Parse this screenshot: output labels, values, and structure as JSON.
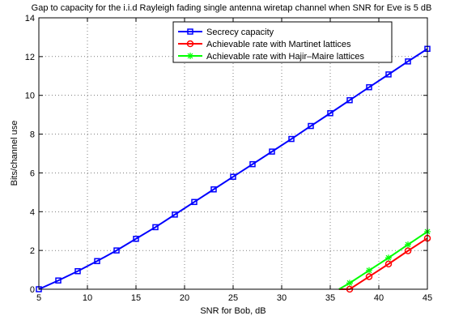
{
  "chart_data": {
    "type": "line",
    "title": "Gap to capacity for the i.i.d Rayleigh fading single antenna wiretap channel when SNR for Eve is 5 dB",
    "xlabel": "SNR for Bob, dB",
    "ylabel": "Bits/channel use",
    "xlim": [
      5,
      45
    ],
    "ylim": [
      0,
      14
    ],
    "xticks": [
      5,
      10,
      15,
      20,
      25,
      30,
      35,
      40,
      45
    ],
    "yticks": [
      0,
      2,
      4,
      6,
      8,
      10,
      12,
      14
    ],
    "grid": true,
    "legend_position": "top-center",
    "series": [
      {
        "name": "Secrecy capacity",
        "color": "#0000ff",
        "marker": "square",
        "x": [
          5,
          7,
          9,
          11,
          13,
          15,
          17,
          19,
          21,
          23,
          25,
          27,
          29,
          31,
          33,
          35,
          37,
          39,
          41,
          43,
          45
        ],
        "y": [
          0.0,
          0.45,
          0.93,
          1.45,
          2.0,
          2.6,
          3.2,
          3.85,
          4.5,
          5.15,
          5.8,
          6.45,
          7.1,
          7.75,
          8.42,
          9.08,
          9.75,
          10.42,
          11.08,
          11.75,
          12.4
        ]
      },
      {
        "name": "Achievable rate with Martinet lattices",
        "color": "#ff0000",
        "marker": "circle",
        "x": [
          35.9,
          37,
          39,
          41,
          43,
          45
        ],
        "y": [
          0.0,
          0.0,
          0.65,
          1.3,
          1.98,
          2.63
        ]
      },
      {
        "name": "Achievable rate with Hajir–Maire lattices",
        "color": "#00ff00",
        "marker": "star",
        "x": [
          35.9,
          37,
          39,
          41,
          43,
          45
        ],
        "y": [
          0.0,
          0.32,
          0.97,
          1.62,
          2.3,
          2.97
        ]
      }
    ]
  }
}
